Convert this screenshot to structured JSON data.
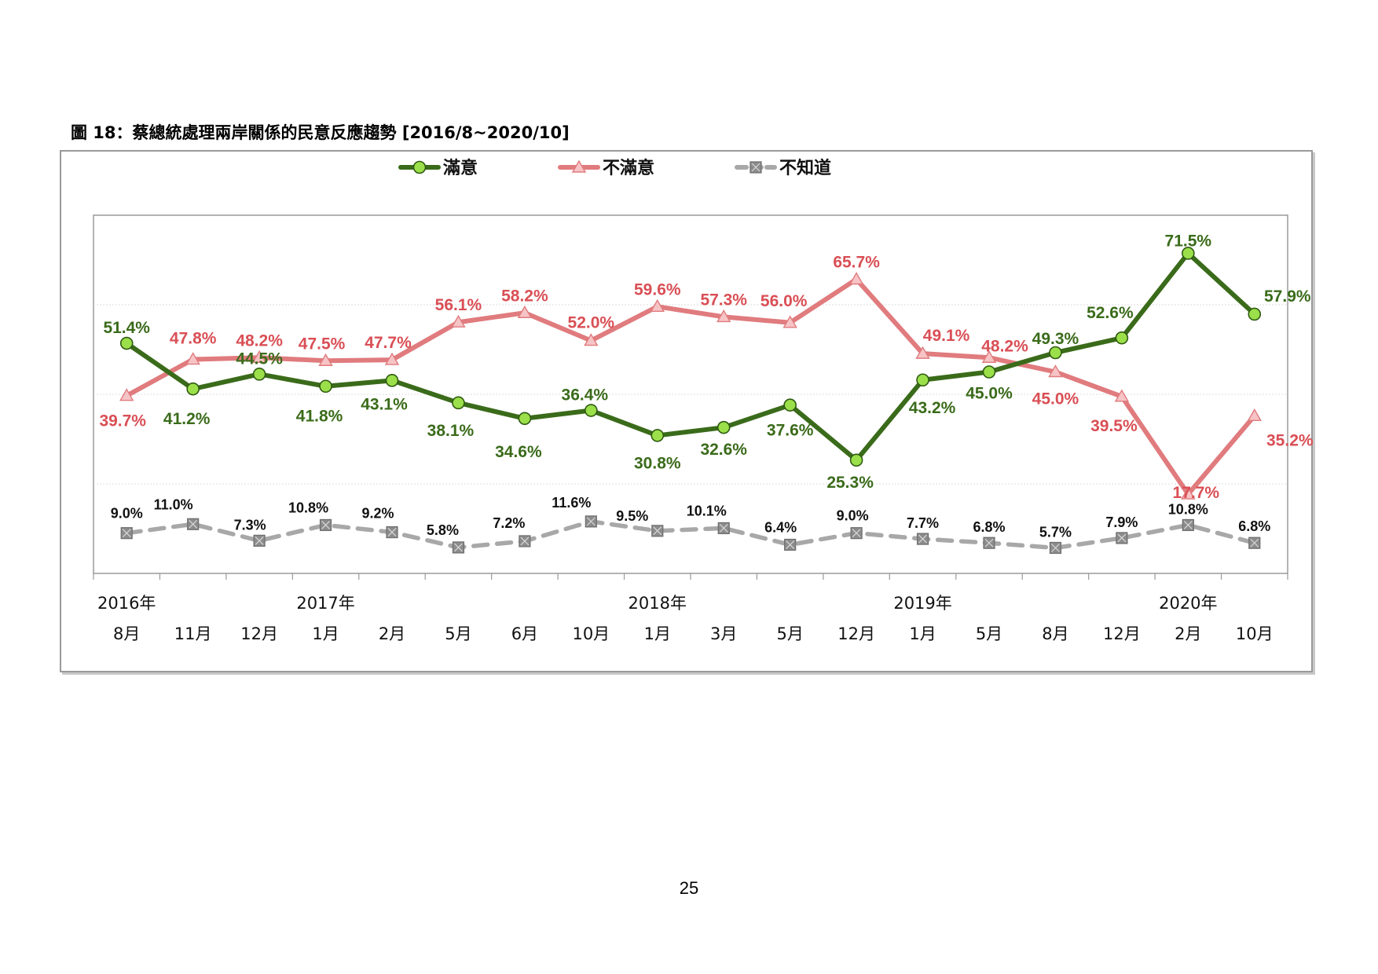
{
  "title": "圖 18：蔡總統處理兩岸關係的民意反應趨勢  [2016/8~2020/10]",
  "page_number": "25",
  "chart_data": {
    "type": "line",
    "ylim": [
      0,
      80
    ],
    "grid": true,
    "legend_position": "top-center",
    "categories": [
      "8月",
      "11月",
      "12月",
      "1月",
      "2月",
      "5月",
      "6月",
      "10月",
      "1月",
      "3月",
      "5月",
      "12月",
      "1月",
      "5月",
      "8月",
      "12月",
      "2月",
      "10月"
    ],
    "year_labels": [
      {
        "index": 0,
        "label": "2016年"
      },
      {
        "index": 3,
        "label": "2017年"
      },
      {
        "index": 8,
        "label": "2018年"
      },
      {
        "index": 12,
        "label": "2019年"
      },
      {
        "index": 16,
        "label": "2020年"
      }
    ],
    "series": [
      {
        "name": "滿意",
        "color": "#3a6b1a",
        "marker": "circle",
        "marker_color": "#9be04a",
        "style": "solid",
        "values": [
          51.4,
          41.2,
          44.5,
          41.8,
          43.1,
          38.1,
          34.6,
          36.4,
          30.8,
          32.6,
          37.6,
          25.3,
          43.2,
          45.0,
          49.3,
          52.6,
          71.5,
          57.9
        ],
        "labels": [
          "51.4%",
          "41.2%",
          "44.5%",
          "41.8%",
          "43.1%",
          "38.1%",
          "34.6%",
          "36.4%",
          "30.8%",
          "32.6%",
          "37.6%",
          "25.3%",
          "43.2%",
          "45.0%",
          "49.3%",
          "52.6%",
          "71.5%",
          "57.9%"
        ]
      },
      {
        "name": "不滿意",
        "color": "#e07b7e",
        "marker": "triangle",
        "marker_color": "#f7c4c6",
        "style": "solid",
        "label_color": "#d94f55",
        "values": [
          39.7,
          47.8,
          48.2,
          47.5,
          47.7,
          56.1,
          58.2,
          52.0,
          59.6,
          57.3,
          56.0,
          65.7,
          49.1,
          48.2,
          45.0,
          39.5,
          17.7,
          35.2
        ],
        "labels": [
          "39.7%",
          "47.8%",
          "48.2%",
          "47.5%",
          "47.7%",
          "56.1%",
          "58.2%",
          "52.0%",
          "59.6%",
          "57.3%",
          "56.0%",
          "65.7%",
          "49.1%",
          "48.2%",
          "45.0%",
          "39.5%",
          "17.7%",
          "35.2%"
        ]
      },
      {
        "name": "不知道",
        "color": "#a8a8a8",
        "marker": "square-x",
        "marker_color": "#8c8c8c",
        "style": "dashed",
        "values": [
          9.0,
          11.0,
          7.3,
          10.8,
          9.2,
          5.8,
          7.2,
          11.6,
          9.5,
          10.1,
          6.4,
          9.0,
          7.7,
          6.8,
          5.7,
          7.9,
          10.8,
          6.8
        ],
        "labels": [
          "9.0%",
          "11.0%",
          "7.3%",
          "10.8%",
          "9.2%",
          "5.8%",
          "7.2%",
          "11.6%",
          "9.5%",
          "10.1%",
          "6.4%",
          "9.0%",
          "7.7%",
          "6.8%",
          "5.7%",
          "7.9%",
          "10.8%",
          "6.8%"
        ]
      }
    ]
  }
}
